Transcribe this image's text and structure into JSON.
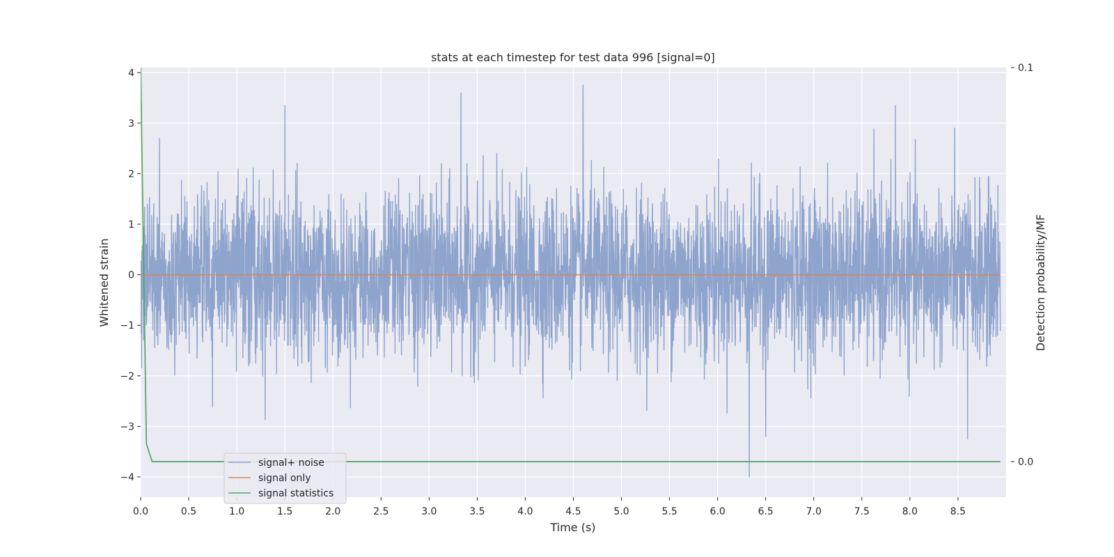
{
  "chart_data": {
    "type": "line",
    "title": "stats at each timestep for test data 996 [signal=0]",
    "xlabel": "Time (s)",
    "ylabel": "Whitened strain",
    "ylabel_right": "Detection probability/MF",
    "xlim": [
      0.0,
      9.0
    ],
    "ylim": [
      -4.4,
      4.1
    ],
    "ylim_right": [
      -0.009,
      0.1
    ],
    "x_ticks": [
      "0.0",
      "0.5",
      "1.0",
      "1.5",
      "2.0",
      "2.5",
      "3.0",
      "3.5",
      "4.0",
      "4.5",
      "5.0",
      "5.5",
      "6.0",
      "6.5",
      "7.0",
      "7.5",
      "8.0",
      "8.5"
    ],
    "y_ticks": [
      "−4",
      "−3",
      "−2",
      "−1",
      "0",
      "1",
      "2",
      "3",
      "4"
    ],
    "y_ticks_right": [
      "0.0",
      "0.1"
    ],
    "grid": true,
    "legend_position": "lower-left",
    "series": [
      {
        "name": "signal+ noise",
        "color": "#8fa4cc",
        "axis": "left",
        "description_values": {
          "mean": 0.0,
          "typical_envelope": [
            -1.6,
            1.8
          ],
          "notable_peaks": [
            {
              "x": 1.5,
              "y": 3.35
            },
            {
              "x": 3.33,
              "y": 3.6
            },
            {
              "x": 4.6,
              "y": 3.75
            },
            {
              "x": 7.85,
              "y": 3.35
            },
            {
              "x": 6.33,
              "y": -4.0
            },
            {
              "x": 6.5,
              "y": -3.2
            },
            {
              "x": 8.6,
              "y": -3.25
            }
          ]
        }
      },
      {
        "name": "signal only",
        "color": "#dd8452",
        "axis": "left",
        "values_constant": 0.0
      },
      {
        "name": "signal statistics",
        "color": "#55a868",
        "axis": "right",
        "x": [
          0.0,
          0.06,
          0.12,
          0.5,
          1.0,
          2.0,
          3.0,
          4.0,
          5.0,
          6.0,
          7.0,
          8.0,
          8.94
        ],
        "y": [
          0.1,
          0.0045,
          0.0,
          0.0,
          0.0,
          0.0,
          0.0,
          0.0,
          0.0,
          0.0,
          0.0,
          0.0,
          0.0
        ]
      }
    ]
  }
}
